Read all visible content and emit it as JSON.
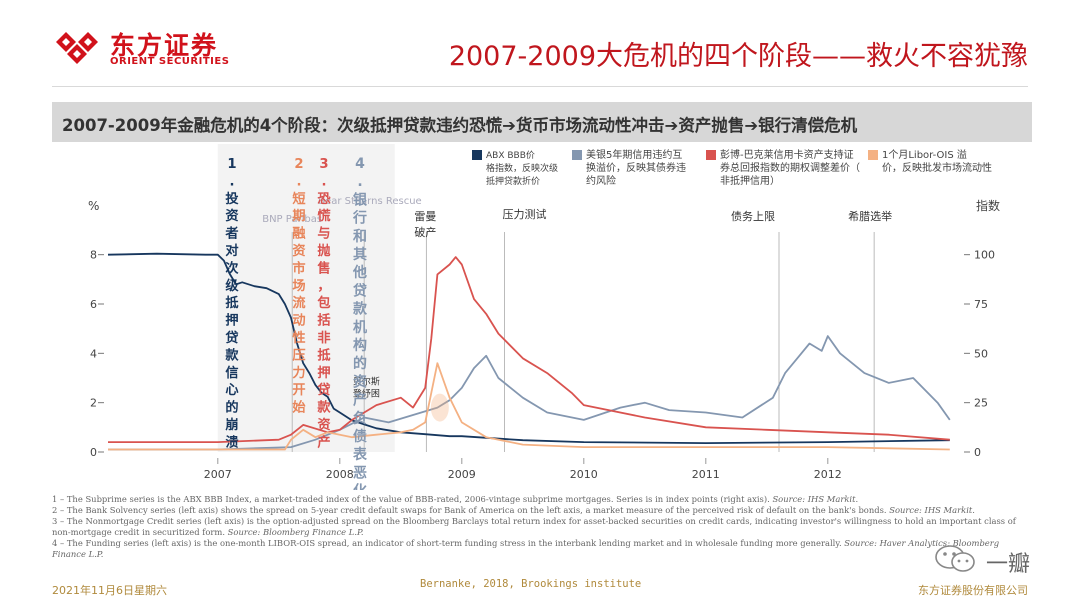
{
  "brand": {
    "cn": "东方证券",
    "en": "ORIENT SECURITIES",
    "color": "#d1121b"
  },
  "page_title": "2007-2009大危机的四个阶段——救火不容犹豫",
  "banner": "2007-2009年金融危机的4个阶段：次级抵押贷款违约恐慌➔货币市场流动性冲击➔资产抛售➔银行清偿危机",
  "footnotes": [
    {
      "text": "1 – The Subprime series is the ABX BBB Index, a market-traded index of the value of BBB-rated, 2006-vintage subprime mortgages. Series is in index points (right axis). ",
      "source": "Source: IHS Markit."
    },
    {
      "text": "2 – The Bank Solvency series (left axis) shows the spread on 5-year credit default swaps for Bank of America on the left axis, a market measure of the perceived risk of default on the bank's bonds. ",
      "source": "Source: IHS Markit."
    },
    {
      "text": "3 – The Nonmortgage Credit series (left axis) is the option-adjusted spread on the Bloomberg Barclays total return index for asset-backed securities on credit cards, indicating investor's willingness to hold an important class of non-mortgage credit in securitized form. ",
      "source": "Source: Bloomberg Finance L.P."
    },
    {
      "text": "4 – The Funding series (left axis) is the one-month LIBOR-OIS spread, an indicator of short-term funding stress in the interbank lending market and in wholesale funding more generally. ",
      "source": "Source: Haver Analytics; Bloomberg Finance L.P."
    }
  ],
  "footer": {
    "date": "2021年11月6日星期六",
    "citation": "Bernanke, 2018, Brookings institute",
    "company": "东方证券股份有限公司"
  },
  "watermark": "一瓣",
  "chart_data": {
    "type": "line",
    "ylabel_left": "%",
    "ylabel_right": "指数",
    "ylim_left": [
      0,
      9.0
    ],
    "ylim_right": [
      0,
      112.5
    ],
    "xlim": [
      2006.1,
      2013.1
    ],
    "x_ticks": [
      {
        "x": 2007.0,
        "label": "2007"
      },
      {
        "x": 2008.0,
        "label": "2008"
      },
      {
        "x": 2009.0,
        "label": "2009"
      },
      {
        "x": 2010.0,
        "label": "2010"
      },
      {
        "x": 2011.0,
        "label": "2011"
      },
      {
        "x": 2012.0,
        "label": "2012"
      }
    ],
    "y_ticks_left": [
      0,
      2,
      4,
      6,
      8
    ],
    "y_ticks_right": [
      0,
      25,
      50,
      75,
      100
    ],
    "legend": [
      {
        "name": "ABX BBB价格指数，反映次级抵押贷款折价",
        "color": "#17375e"
      },
      {
        "name": "美银5年期信用违约互换溢价，反映其债券违约风险",
        "color": "#8497b0"
      },
      {
        "name": "彭博-巴克莱信用卡资产支持证券总回报指数的期权调整差价（非抵押信用）",
        "color": "#d9534f"
      },
      {
        "name": "1个月Libor-OIS 溢价，反映批发市场流动性",
        "color": "#f4b183"
      }
    ],
    "phases": [
      {
        "label": "1.投资者对次级抵押贷款信心的崩溃",
        "color": "#17375e",
        "x_start": 2007.0,
        "x_end": 2007.6
      },
      {
        "label": "2.短期融资市场流动性压力开始",
        "color": "#e8855a",
        "x_start": 2007.6,
        "x_end": 2007.75
      },
      {
        "label": "3.恐慌与抛售，包括非抵押贷款资产",
        "color": "#d9534f",
        "x_start": 2007.75,
        "x_end": 2008.15
      },
      {
        "label": "4.银行和其他贷款机构的资产负债表恶化",
        "color": "#8497b0",
        "x_start": 2008.15,
        "x_end": 2008.45
      }
    ],
    "event_lines": [
      {
        "x": 2007.61,
        "label": "BNP Paribas"
      },
      {
        "x": 2008.2,
        "label": "Bear Stearns Rescue"
      },
      {
        "x": 2008.71,
        "label": "雷曼破产"
      },
      {
        "x": 2009.35,
        "label": "压力测试"
      },
      {
        "x": 2011.6,
        "label": "债务上限"
      },
      {
        "x": 2012.38,
        "label": "希腊选举"
      }
    ],
    "annotations": [
      {
        "x": 2008.55,
        "y": 1.5,
        "label": "贝尔斯登纾困"
      }
    ],
    "series": [
      {
        "name": "ABX BBB价格指数，反映次级抵押贷款折价",
        "axis": "right",
        "color": "#17375e",
        "x": [
          2006.1,
          2006.5,
          2006.9,
          2007.0,
          2007.05,
          2007.1,
          2007.15,
          2007.2,
          2007.3,
          2007.4,
          2007.5,
          2007.55,
          2007.6,
          2007.65,
          2007.7,
          2007.75,
          2007.8,
          2007.85,
          2007.9,
          2007.95,
          2008.0,
          2008.1,
          2008.2,
          2008.3,
          2008.5,
          2008.7,
          2008.9,
          2009.0,
          2009.5,
          2010.0,
          2011.0,
          2012.0,
          2013.0
        ],
        "y": [
          100,
          100.5,
          100,
          100,
          97,
          90,
          85,
          86,
          84,
          83,
          80,
          75,
          68,
          55,
          45,
          40,
          34,
          30,
          28,
          22,
          20,
          16,
          14,
          12,
          10,
          9,
          8,
          8,
          6,
          5,
          4.5,
          5,
          6
        ]
      },
      {
        "name": "美银5年期信用违约互换溢价，反映其债券违约风险",
        "axis": "left",
        "color": "#8497b0",
        "x": [
          2006.1,
          2007.0,
          2007.6,
          2007.8,
          2008.0,
          2008.2,
          2008.4,
          2008.6,
          2008.8,
          2008.9,
          2009.0,
          2009.1,
          2009.2,
          2009.3,
          2009.5,
          2009.7,
          2010.0,
          2010.3,
          2010.5,
          2010.7,
          2011.0,
          2011.3,
          2011.55,
          2011.65,
          2011.75,
          2011.85,
          2011.95,
          2012.0,
          2012.1,
          2012.3,
          2012.5,
          2012.7,
          2012.9,
          2013.0
        ],
        "y": [
          0.1,
          0.1,
          0.2,
          0.5,
          0.9,
          1.4,
          1.2,
          1.5,
          1.8,
          2.1,
          2.6,
          3.4,
          3.9,
          3.0,
          2.2,
          1.6,
          1.3,
          1.8,
          2.0,
          1.7,
          1.6,
          1.4,
          2.2,
          3.2,
          3.8,
          4.4,
          4.1,
          4.7,
          4.0,
          3.2,
          2.8,
          3.0,
          2.0,
          1.3
        ]
      },
      {
        "name": "彭博-巴克莱信用卡资产支持证券总回报指数的期权调整差价（非抵押信用）",
        "axis": "left",
        "color": "#d9534f",
        "x": [
          2006.1,
          2007.0,
          2007.5,
          2007.6,
          2007.7,
          2007.9,
          2008.0,
          2008.1,
          2008.3,
          2008.5,
          2008.6,
          2008.7,
          2008.75,
          2008.8,
          2008.9,
          2008.95,
          2009.0,
          2009.1,
          2009.2,
          2009.3,
          2009.5,
          2009.7,
          2009.9,
          2010.0,
          2010.5,
          2011.0,
          2011.5,
          2012.0,
          2012.5,
          2013.0
        ],
        "y": [
          0.4,
          0.4,
          0.5,
          0.7,
          1.1,
          0.8,
          0.9,
          1.3,
          1.9,
          2.2,
          1.8,
          2.6,
          4.6,
          7.2,
          7.6,
          7.9,
          7.6,
          6.2,
          5.6,
          4.8,
          3.8,
          3.2,
          2.4,
          1.9,
          1.4,
          1.0,
          0.9,
          0.8,
          0.7,
          0.5
        ]
      },
      {
        "name": "1个月Libor-OIS 溢价，反映批发市场流动性",
        "axis": "left",
        "color": "#f4b183",
        "x": [
          2006.1,
          2007.0,
          2007.55,
          2007.6,
          2007.7,
          2007.8,
          2007.9,
          2008.0,
          2008.1,
          2008.3,
          2008.5,
          2008.6,
          2008.7,
          2008.75,
          2008.8,
          2008.9,
          2009.0,
          2009.2,
          2009.5,
          2010.0,
          2011.0,
          2012.0,
          2013.0
        ],
        "y": [
          0.1,
          0.1,
          0.1,
          0.5,
          0.9,
          0.6,
          0.8,
          0.7,
          0.6,
          0.7,
          0.8,
          0.9,
          1.2,
          2.4,
          3.6,
          2.2,
          1.2,
          0.6,
          0.3,
          0.2,
          0.2,
          0.2,
          0.1
        ]
      }
    ]
  }
}
